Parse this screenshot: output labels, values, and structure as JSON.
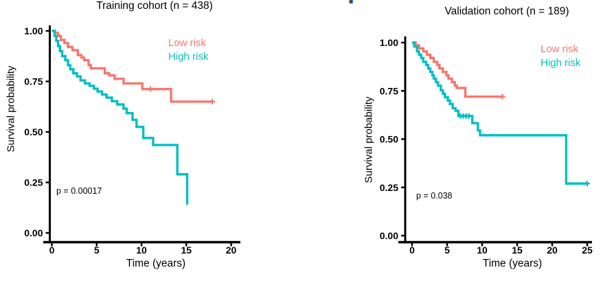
{
  "artifact": {
    "description": "tiny clipped glyph fragment at top edge",
    "colors": [
      "#DD7B16",
      "#1F3060",
      "#4472C4"
    ]
  },
  "chart_data": [
    {
      "type": "line",
      "subtype": "kaplan-meier-step",
      "title": "Training cohort (n = 438)",
      "xlabel": "Time (years)",
      "ylabel": "Survival probability",
      "pvalue": "p = 0.00017",
      "xlim": [
        0,
        20
      ],
      "ylim": [
        0,
        1
      ],
      "xticks": [
        0,
        5,
        10,
        15,
        20
      ],
      "ytick_labels": [
        "0.00",
        "0.25",
        "0.50",
        "0.75",
        "1.00"
      ],
      "grid": false,
      "legend_position": "inside-top-right",
      "series": [
        {
          "name": "Low risk",
          "color": "#F8766D",
          "points": [
            [
              0,
              1.0
            ],
            [
              0.35,
              0.99
            ],
            [
              0.7,
              0.975
            ],
            [
              1.0,
              0.955
            ],
            [
              1.4,
              0.94
            ],
            [
              1.8,
              0.92
            ],
            [
              2.3,
              0.905
            ],
            [
              2.9,
              0.88
            ],
            [
              3.3,
              0.868
            ],
            [
              3.6,
              0.855
            ],
            [
              4.1,
              0.83
            ],
            [
              4.35,
              0.815
            ],
            [
              5.9,
              0.79
            ],
            [
              6.4,
              0.78
            ],
            [
              7.0,
              0.763
            ],
            [
              8.0,
              0.74
            ],
            [
              10.1,
              0.712
            ],
            [
              13.3,
              0.65
            ],
            [
              17.9,
              0.65
            ]
          ],
          "censor_marks": [
            [
              11.0,
              0.712
            ],
            [
              17.9,
              0.65
            ]
          ]
        },
        {
          "name": "High risk",
          "color": "#00BFC4",
          "points": [
            [
              0,
              1.0
            ],
            [
              0.3,
              0.975
            ],
            [
              0.5,
              0.95
            ],
            [
              0.7,
              0.925
            ],
            [
              0.9,
              0.9
            ],
            [
              1.15,
              0.875
            ],
            [
              1.5,
              0.855
            ],
            [
              1.8,
              0.83
            ],
            [
              2.05,
              0.81
            ],
            [
              2.4,
              0.79
            ],
            [
              2.8,
              0.775
            ],
            [
              3.2,
              0.755
            ],
            [
              3.7,
              0.74
            ],
            [
              4.2,
              0.728
            ],
            [
              4.7,
              0.714
            ],
            [
              5.1,
              0.7
            ],
            [
              5.6,
              0.685
            ],
            [
              6.1,
              0.67
            ],
            [
              6.7,
              0.652
            ],
            [
              7.3,
              0.636
            ],
            [
              8.0,
              0.615
            ],
            [
              8.35,
              0.593
            ],
            [
              9.0,
              0.56
            ],
            [
              9.45,
              0.525
            ],
            [
              10.2,
              0.47
            ],
            [
              11.3,
              0.435
            ],
            [
              14.0,
              0.29
            ],
            [
              15.1,
              0.14
            ]
          ],
          "censor_marks": []
        }
      ]
    },
    {
      "type": "line",
      "subtype": "kaplan-meier-step",
      "title": "Validation cohort (n = 189)",
      "xlabel": "Time (years)",
      "ylabel": "Survival probability",
      "pvalue": "p = 0.038",
      "xlim": [
        0,
        25
      ],
      "ylim": [
        0,
        1
      ],
      "xticks": [
        0,
        5,
        10,
        15,
        20,
        25
      ],
      "ytick_labels": [
        "0.00",
        "0.25",
        "0.50",
        "0.75",
        "1.00"
      ],
      "grid": false,
      "legend_position": "inside-top-right",
      "series": [
        {
          "name": "Low risk",
          "color": "#F8766D",
          "points": [
            [
              0,
              1.0
            ],
            [
              0.5,
              0.985
            ],
            [
              1.0,
              0.97
            ],
            [
              1.6,
              0.954
            ],
            [
              2.1,
              0.937
            ],
            [
              2.6,
              0.92
            ],
            [
              3.1,
              0.9
            ],
            [
              3.6,
              0.884
            ],
            [
              3.9,
              0.866
            ],
            [
              4.4,
              0.848
            ],
            [
              4.9,
              0.83
            ],
            [
              5.2,
              0.813
            ],
            [
              5.7,
              0.795
            ],
            [
              6.1,
              0.777
            ],
            [
              6.4,
              0.765
            ],
            [
              7.6,
              0.72
            ],
            [
              12.9,
              0.72
            ]
          ],
          "censor_marks": [
            [
              12.9,
              0.72
            ]
          ]
        },
        {
          "name": "High risk",
          "color": "#00BFC4",
          "points": [
            [
              0,
              1.0
            ],
            [
              0.3,
              0.98
            ],
            [
              0.7,
              0.954
            ],
            [
              1.0,
              0.937
            ],
            [
              1.3,
              0.92
            ],
            [
              1.6,
              0.9
            ],
            [
              2.0,
              0.884
            ],
            [
              2.3,
              0.866
            ],
            [
              2.6,
              0.848
            ],
            [
              2.9,
              0.83
            ],
            [
              3.1,
              0.813
            ],
            [
              3.4,
              0.795
            ],
            [
              3.7,
              0.777
            ],
            [
              4.1,
              0.753
            ],
            [
              4.4,
              0.735
            ],
            [
              4.7,
              0.717
            ],
            [
              5.1,
              0.7
            ],
            [
              5.4,
              0.682
            ],
            [
              5.8,
              0.66
            ],
            [
              6.2,
              0.647
            ],
            [
              6.6,
              0.62
            ],
            [
              8.6,
              0.583
            ],
            [
              9.4,
              0.545
            ],
            [
              9.7,
              0.52
            ],
            [
              22.0,
              0.27
            ],
            [
              25.0,
              0.27
            ]
          ],
          "censor_marks": [
            [
              6.9,
              0.62
            ],
            [
              7.3,
              0.62
            ],
            [
              7.7,
              0.62
            ],
            [
              8.1,
              0.62
            ],
            [
              25.0,
              0.27
            ]
          ]
        }
      ]
    }
  ]
}
